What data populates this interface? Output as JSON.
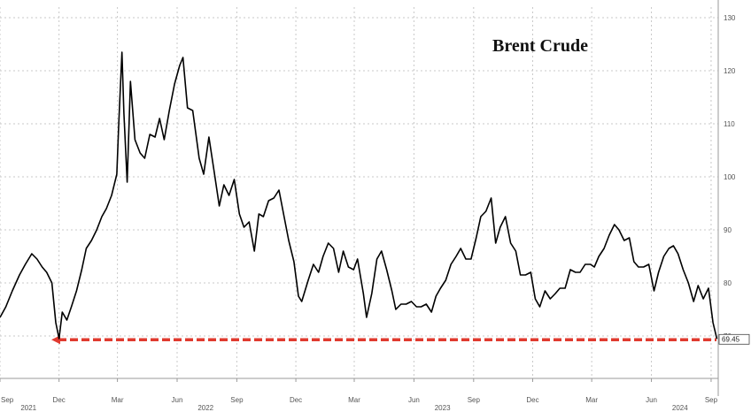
{
  "chart_data": {
    "type": "line",
    "title": "Brent Crude",
    "xlabel": "",
    "ylabel": "",
    "ylim": [
      62,
      132
    ],
    "y_ticks": [
      70,
      80,
      90,
      100,
      110,
      120,
      130
    ],
    "x_range": [
      "2021-09-01",
      "2024-09-12"
    ],
    "x_ticks": [
      {
        "label": "Sep",
        "date": "2021-09-01"
      },
      {
        "label": "Dec",
        "date": "2021-12-01"
      },
      {
        "label": "Mar",
        "date": "2022-03-01"
      },
      {
        "label": "Jun",
        "date": "2022-06-01"
      },
      {
        "label": "Sep",
        "date": "2022-09-01"
      },
      {
        "label": "Dec",
        "date": "2022-12-01"
      },
      {
        "label": "Mar",
        "date": "2023-03-01"
      },
      {
        "label": "Jun",
        "date": "2023-06-01"
      },
      {
        "label": "Sep",
        "date": "2023-09-01"
      },
      {
        "label": "Dec",
        "date": "2023-12-01"
      },
      {
        "label": "Mar",
        "date": "2024-03-01"
      },
      {
        "label": "Jun",
        "date": "2024-06-01"
      },
      {
        "label": "Sep",
        "date": "2024-09-01"
      }
    ],
    "year_labels": [
      {
        "label": "2021",
        "date": "2021-10-15"
      },
      {
        "label": "2022",
        "date": "2022-07-15"
      },
      {
        "label": "2023",
        "date": "2023-07-15"
      },
      {
        "label": "2024",
        "date": "2024-07-15"
      }
    ],
    "grid": true,
    "last_value_label": "69.45",
    "reference_line": {
      "value": 69.45,
      "color": "#e03a2f",
      "style": "dashed",
      "arrow": "left"
    },
    "line_color": "#000000",
    "series": [
      {
        "x": [
          "2021-09-01",
          "2021-09-10",
          "2021-09-20",
          "2021-10-01",
          "2021-10-10",
          "2021-10-20",
          "2021-10-28",
          "2021-11-05",
          "2021-11-12",
          "2021-11-20",
          "2021-11-26",
          "2021-12-01",
          "2021-12-06",
          "2021-12-13",
          "2021-12-20",
          "2021-12-28",
          "2022-01-05",
          "2022-01-12",
          "2022-01-20",
          "2022-01-28",
          "2022-02-05",
          "2022-02-12",
          "2022-02-20",
          "2022-02-28",
          "2022-03-03",
          "2022-03-08",
          "2022-03-11",
          "2022-03-16",
          "2022-03-21",
          "2022-03-28",
          "2022-04-05",
          "2022-04-12",
          "2022-04-20",
          "2022-04-28",
          "2022-05-05",
          "2022-05-12",
          "2022-05-20",
          "2022-05-28",
          "2022-06-05",
          "2022-06-10",
          "2022-06-17",
          "2022-06-25",
          "2022-07-05",
          "2022-07-12",
          "2022-07-20",
          "2022-07-28",
          "2022-08-05",
          "2022-08-12",
          "2022-08-20",
          "2022-08-28",
          "2022-09-05",
          "2022-09-12",
          "2022-09-20",
          "2022-09-28",
          "2022-10-05",
          "2022-10-12",
          "2022-10-20",
          "2022-10-28",
          "2022-11-05",
          "2022-11-12",
          "2022-11-20",
          "2022-11-28",
          "2022-12-05",
          "2022-12-10",
          "2022-12-20",
          "2022-12-28",
          "2023-01-05",
          "2023-01-12",
          "2023-01-20",
          "2023-01-28",
          "2023-02-05",
          "2023-02-12",
          "2023-02-20",
          "2023-02-28",
          "2023-03-06",
          "2023-03-15",
          "2023-03-20",
          "2023-03-28",
          "2023-04-05",
          "2023-04-12",
          "2023-04-20",
          "2023-04-28",
          "2023-05-04",
          "2023-05-12",
          "2023-05-20",
          "2023-05-28",
          "2023-06-05",
          "2023-06-12",
          "2023-06-20",
          "2023-06-28",
          "2023-07-05",
          "2023-07-12",
          "2023-07-20",
          "2023-07-28",
          "2023-08-05",
          "2023-08-12",
          "2023-08-20",
          "2023-08-28",
          "2023-09-05",
          "2023-09-12",
          "2023-09-20",
          "2023-09-28",
          "2023-10-05",
          "2023-10-12",
          "2023-10-20",
          "2023-10-28",
          "2023-11-05",
          "2023-11-12",
          "2023-11-20",
          "2023-11-28",
          "2023-12-05",
          "2023-12-12",
          "2023-12-20",
          "2023-12-28",
          "2024-01-05",
          "2024-01-12",
          "2024-01-20",
          "2024-01-28",
          "2024-02-05",
          "2024-02-12",
          "2024-02-20",
          "2024-02-28",
          "2024-03-05",
          "2024-03-12",
          "2024-03-20",
          "2024-03-28",
          "2024-04-05",
          "2024-04-12",
          "2024-04-20",
          "2024-04-28",
          "2024-05-05",
          "2024-05-12",
          "2024-05-20",
          "2024-05-28",
          "2024-06-05",
          "2024-06-12",
          "2024-06-20",
          "2024-06-28",
          "2024-07-05",
          "2024-07-12",
          "2024-07-20",
          "2024-07-28",
          "2024-08-05",
          "2024-08-12",
          "2024-08-20",
          "2024-08-28",
          "2024-09-04",
          "2024-09-10"
        ],
        "y": [
          73.5,
          75.5,
          78.5,
          81.5,
          83.5,
          85.5,
          84.5,
          83.0,
          82.0,
          80.0,
          72.5,
          69.5,
          74.5,
          73.0,
          75.5,
          78.5,
          82.5,
          86.5,
          88.0,
          90.0,
          92.5,
          94.0,
          96.5,
          100.5,
          110.0,
          123.5,
          112.0,
          99.0,
          118.0,
          107.0,
          104.5,
          103.5,
          108.0,
          107.5,
          111.0,
          107.0,
          112.5,
          117.5,
          121.0,
          122.5,
          113.0,
          112.5,
          103.5,
          100.5,
          107.5,
          101.0,
          94.5,
          98.5,
          96.5,
          99.5,
          93.0,
          90.5,
          91.5,
          86.0,
          93.0,
          92.5,
          95.5,
          96.0,
          97.5,
          93.0,
          88.0,
          84.0,
          77.5,
          76.5,
          80.5,
          83.5,
          82.0,
          85.0,
          87.5,
          86.5,
          82.0,
          86.0,
          83.0,
          82.5,
          84.5,
          78.0,
          73.5,
          78.0,
          84.5,
          86.0,
          82.5,
          78.5,
          75.0,
          76.0,
          76.0,
          76.5,
          75.5,
          75.5,
          76.0,
          74.5,
          77.5,
          79.0,
          80.5,
          83.5,
          85.0,
          86.5,
          84.5,
          84.5,
          88.5,
          92.5,
          93.5,
          96.0,
          87.5,
          90.5,
          92.5,
          87.5,
          86.0,
          81.5,
          81.5,
          82.0,
          77.0,
          75.5,
          78.5,
          77.0,
          78.0,
          79.0,
          79.0,
          82.5,
          82.0,
          82.0,
          83.5,
          83.5,
          83.0,
          85.0,
          86.5,
          89.0,
          91.0,
          90.0,
          88.0,
          88.5,
          84.0,
          83.0,
          83.0,
          83.5,
          78.5,
          82.0,
          85.0,
          86.5,
          87.0,
          85.5,
          82.5,
          80.0,
          76.5,
          79.5,
          77.0,
          79.0,
          72.5,
          69.45
        ]
      }
    ]
  }
}
